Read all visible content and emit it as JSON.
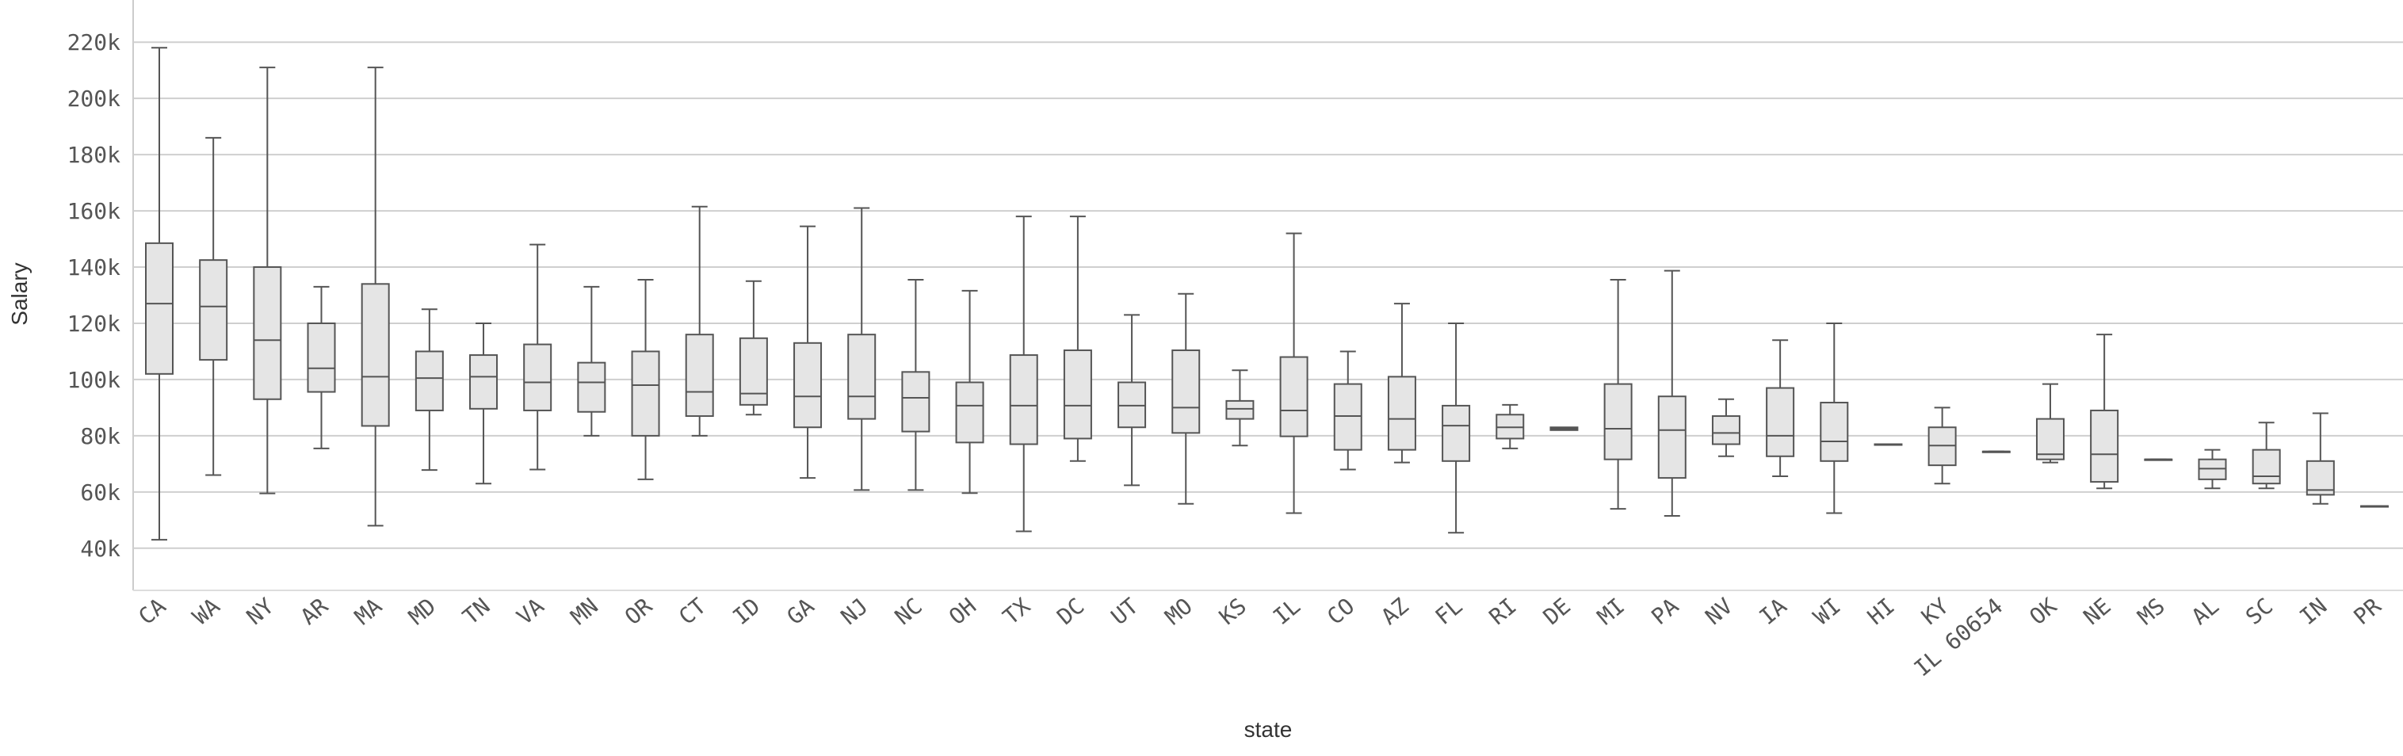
{
  "chart_data": {
    "type": "box",
    "x_label": "state",
    "y_label": "Salary",
    "categories": [
      "CA",
      "WA",
      "NY",
      "AR",
      "MA",
      "MD",
      "TN",
      "VA",
      "MN",
      "OR",
      "CT",
      "ID",
      "GA",
      "NJ",
      "NC",
      "OH",
      "TX",
      "DC",
      "UT",
      "MO",
      "KS",
      "IL",
      "CO",
      "AZ",
      "FL",
      "RI",
      "DE",
      "MI",
      "PA",
      "NV",
      "IA",
      "WI",
      "HI",
      "KY",
      "IL 60654",
      "OK",
      "NE",
      "MS",
      "AL",
      "SC",
      "IN",
      "PR"
    ],
    "min": [
      43000,
      66000,
      59500,
      75500,
      48000,
      67800,
      63000,
      68000,
      80000,
      64500,
      80000,
      87500,
      65000,
      60700,
      60700,
      59600,
      46000,
      71000,
      62400,
      55800,
      76500,
      52500,
      68000,
      70500,
      45500,
      75500,
      82500,
      54000,
      51500,
      72700,
      65600,
      52500,
      77000,
      63000,
      74400,
      70500,
      61300,
      71600,
      61300,
      61300,
      55800,
      55000
    ],
    "q1": [
      102000,
      107000,
      93000,
      95600,
      83500,
      89000,
      89600,
      89000,
      88500,
      80000,
      87000,
      91000,
      83000,
      86000,
      81500,
      77600,
      77000,
      79000,
      83000,
      81000,
      86000,
      79800,
      75000,
      75000,
      71000,
      79000,
      82000,
      71600,
      65000,
      77000,
      72700,
      71000,
      77000,
      69500,
      74400,
      71600,
      63600,
      71600,
      64500,
      63000,
      59000,
      55000
    ],
    "median": [
      127000,
      126000,
      114000,
      104000,
      101000,
      100500,
      101000,
      99000,
      99000,
      98000,
      95600,
      95000,
      94000,
      94000,
      93500,
      90700,
      90700,
      90700,
      90700,
      90000,
      89600,
      89000,
      87000,
      86000,
      83600,
      83000,
      82500,
      82500,
      82000,
      81000,
      80000,
      78000,
      77000,
      76500,
      74400,
      73400,
      73400,
      71600,
      68300,
      65600,
      60700,
      55000
    ],
    "q3": [
      148500,
      142500,
      140000,
      120000,
      134000,
      110000,
      108700,
      112500,
      106000,
      110000,
      116000,
      114700,
      113000,
      116000,
      102700,
      99000,
      108700,
      110400,
      99000,
      110400,
      92400,
      108000,
      98400,
      101000,
      90700,
      87500,
      83000,
      98400,
      94000,
      87000,
      97000,
      91800,
      77000,
      83000,
      74400,
      86000,
      89000,
      71600,
      71600,
      75000,
      71000,
      55000
    ],
    "max": [
      218000,
      186000,
      211000,
      133000,
      211000,
      125000,
      120000,
      148000,
      133000,
      135500,
      161500,
      135000,
      154500,
      161000,
      135500,
      131600,
      158000,
      158000,
      123000,
      130500,
      103300,
      152000,
      110000,
      127000,
      120000,
      91000,
      82500,
      135500,
      138700,
      93000,
      114000,
      120000,
      77000,
      90000,
      74400,
      98400,
      116000,
      71600,
      75000,
      84700,
      88000,
      55000
    ],
    "color": "#e5e5e5",
    "edge_color": "#555555",
    "ylim": [
      25000,
      235000
    ],
    "yticks": [
      {
        "value": 40000,
        "label": "40k"
      },
      {
        "value": 60000,
        "label": "60k"
      },
      {
        "value": 80000,
        "label": "80k"
      },
      {
        "value": 100000,
        "label": "100k"
      },
      {
        "value": 120000,
        "label": "120k"
      },
      {
        "value": 140000,
        "label": "140k"
      },
      {
        "value": 160000,
        "label": "160k"
      },
      {
        "value": 180000,
        "label": "180k"
      },
      {
        "value": 200000,
        "label": "200k"
      },
      {
        "value": 220000,
        "label": "220k"
      }
    ],
    "grid": true
  }
}
